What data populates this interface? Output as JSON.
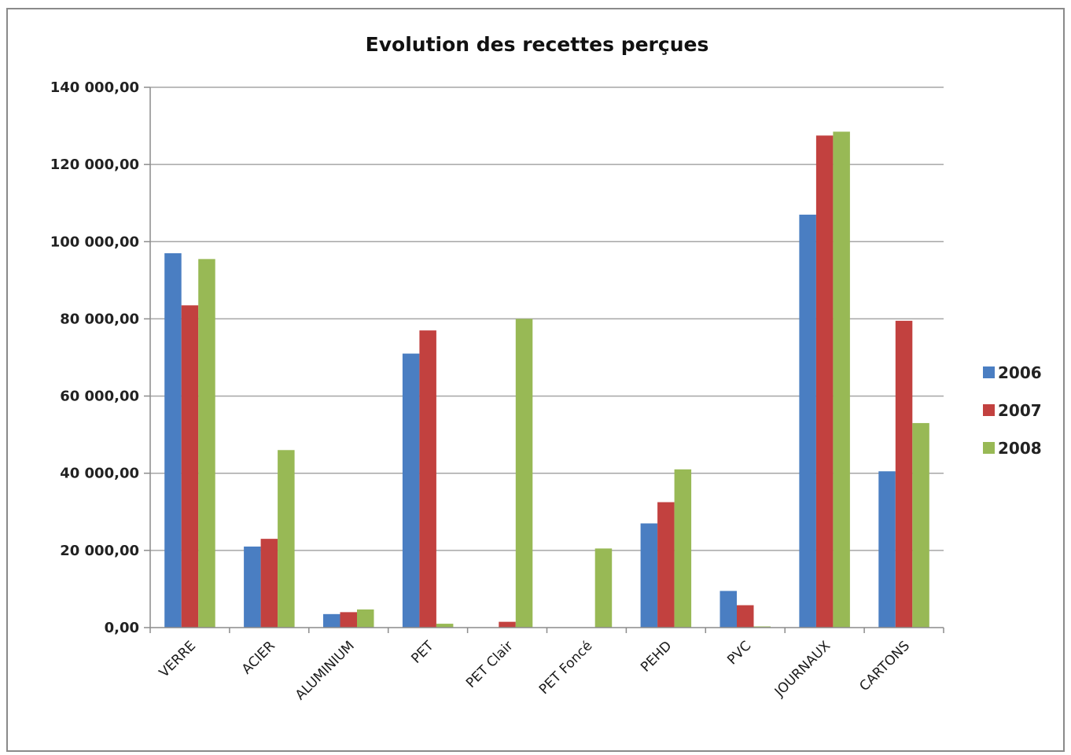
{
  "chart_data": {
    "type": "bar",
    "title": "Evolution des recettes perçues",
    "xlabel": "",
    "ylabel": "",
    "ylim": [
      0,
      140000
    ],
    "y_ticks": [
      "0,00",
      "20 000,00",
      "40 000,00",
      "60 000,00",
      "80 000,00",
      "100 000,00",
      "120 000,00",
      "140 000,00"
    ],
    "categories": [
      "VERRE",
      "ACIER",
      "ALUMINIUM",
      "PET",
      "PET Clair",
      "PET Foncé",
      "PEHD",
      "PVC",
      "JOURNAUX",
      "CARTONS"
    ],
    "series": [
      {
        "name": "2006",
        "color": "#4a7ec2",
        "values": [
          97000,
          21000,
          3500,
          71000,
          0,
          0,
          27000,
          9500,
          107000,
          40500
        ]
      },
      {
        "name": "2007",
        "color": "#c2413f",
        "values": [
          83500,
          23000,
          4000,
          77000,
          1500,
          0,
          32500,
          5800,
          127500,
          79500
        ]
      },
      {
        "name": "2008",
        "color": "#98b955",
        "values": [
          95500,
          46000,
          4700,
          1000,
          80000,
          20500,
          41000,
          300,
          128500,
          53000
        ]
      }
    ],
    "grid": true,
    "legend_position": "right"
  }
}
